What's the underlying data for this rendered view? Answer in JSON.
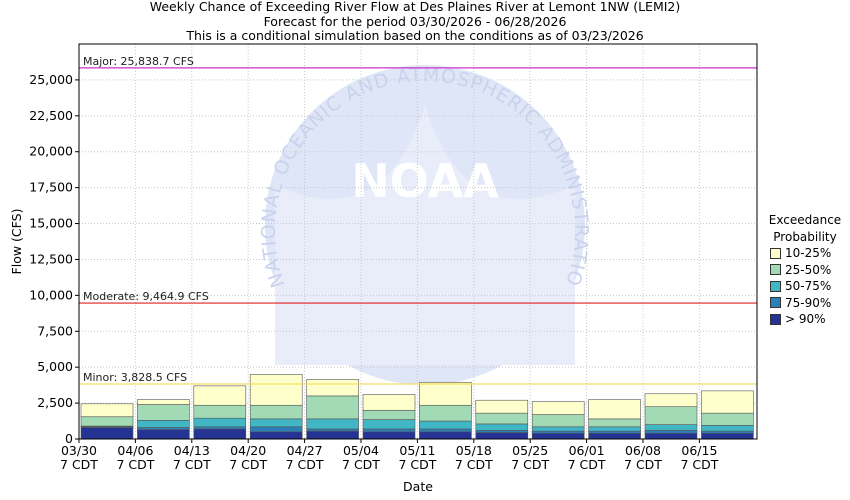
{
  "titles": {
    "line1": "Weekly Chance of Exceeding River Flow at Des Plaines River at Lemont 1NW (LEMI2)",
    "line2": "Forecast for the period 03/30/2026 - 06/28/2026",
    "line3": "This is a conditional simulation based on the conditions as of 03/23/2026"
  },
  "watermark": {
    "text": "NOAA",
    "ring_text": "NATIONAL OCEANIC AND ATMOSPHERIC ADMINISTRATION"
  },
  "legend": {
    "title_line1": "Exceedance",
    "title_line2": "Probability",
    "items": [
      {
        "label": "10-25%",
        "color": "#ffffcc"
      },
      {
        "label": "25-50%",
        "color": "#a1dab4"
      },
      {
        "label": "50-75%",
        "color": "#41b6c4"
      },
      {
        "label": "75-90%",
        "color": "#2c7fb8"
      },
      {
        "label": "> 90%",
        "color": "#253494"
      }
    ]
  },
  "chart_data": {
    "type": "bar",
    "stacked": true,
    "xlabel": "Date",
    "ylabel": "Flow (CFS)",
    "ylim": [
      0,
      27500
    ],
    "yticks": [
      0,
      2500,
      5000,
      7500,
      10000,
      12500,
      15000,
      17500,
      20000,
      22500,
      25000
    ],
    "ytick_labels": [
      "0",
      "2,500",
      "5,000",
      "7,500",
      "10,000",
      "12,500",
      "15,000",
      "17,500",
      "20,000",
      "22,500",
      "25,000"
    ],
    "xtick_labels": [
      [
        "03/30",
        "7 CDT"
      ],
      [
        "04/06",
        "7 CDT"
      ],
      [
        "04/13",
        "7 CDT"
      ],
      [
        "04/20",
        "7 CDT"
      ],
      [
        "04/27",
        "7 CDT"
      ],
      [
        "05/04",
        "7 CDT"
      ],
      [
        "05/11",
        "7 CDT"
      ],
      [
        "05/18",
        "7 CDT"
      ],
      [
        "05/25",
        "7 CDT"
      ],
      [
        "06/01",
        "7 CDT"
      ],
      [
        "06/08",
        "7 CDT"
      ],
      [
        "06/15",
        "7 CDT"
      ]
    ],
    "grid": true,
    "legend_position": "right",
    "series": [
      {
        "name": "> 90%",
        "color": "#253494",
        "values": [
          800,
          650,
          700,
          500,
          550,
          500,
          500,
          450,
          400,
          400,
          400,
          400
        ]
      },
      {
        "name": "75-90%",
        "color": "#2c7fb8",
        "values": [
          850,
          800,
          850,
          850,
          700,
          700,
          700,
          600,
          550,
          550,
          600,
          550
        ]
      },
      {
        "name": "50-75%",
        "color": "#41b6c4",
        "values": [
          900,
          1300,
          1450,
          1400,
          1400,
          1350,
          1250,
          1050,
          850,
          850,
          1000,
          950
        ]
      },
      {
        "name": "25-50%",
        "color": "#a1dab4",
        "values": [
          1550,
          2400,
          2350,
          2350,
          3000,
          2000,
          2350,
          1800,
          1700,
          1400,
          2250,
          1800
        ]
      },
      {
        "name": "10-25%",
        "color": "#ffffcc",
        "values": [
          2450,
          2750,
          3700,
          4500,
          4150,
          3100,
          3950,
          2700,
          2600,
          2750,
          3150,
          3350
        ]
      }
    ],
    "thresholds": [
      {
        "label": "Major: 25,838.7 CFS",
        "value": 25838.7,
        "color": "#cc33cc"
      },
      {
        "label": "Moderate: 9,464.9 CFS",
        "value": 9464.9,
        "color": "#dd2222"
      },
      {
        "label": "Minor: 3,828.5 CFS",
        "value": 3828.5,
        "color": "#f5dd66"
      }
    ]
  }
}
